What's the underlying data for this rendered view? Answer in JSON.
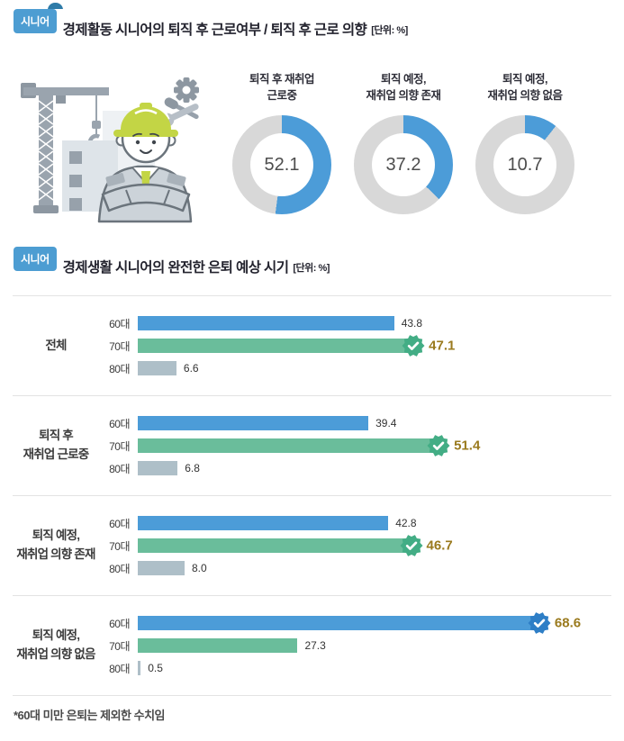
{
  "section1": {
    "badge": "시니어",
    "title": "경제활동 시니어의 퇴직 후 근로여부 / 퇴직 후 근로 의향",
    "unit": "[단위: %]"
  },
  "section2": {
    "badge": "시니어",
    "title": "경제생활 시니어의 완전한 은퇴 예상 시기",
    "unit": "[단위: %]",
    "footnote": "*60대 미만 은퇴는 제외한 수치임"
  },
  "colors": {
    "bar_blue": "#4C9CD8",
    "bar_green": "#6ABD9B",
    "bar_gray": "#AEBFC8",
    "donut_fill": "#4C9CD8",
    "donut_track": "#D8D8D8",
    "highlight_gold": "#9A7A1E",
    "seal_green": "#43AD85",
    "seal_blue": "#2E7EC6",
    "ribbon_blue": "#4D9DD2",
    "ribbon_fold": "#2E7BA8"
  },
  "chart_data": [
    {
      "type": "pie",
      "subtype": "donut",
      "title": "경제활동 시니어의 퇴직 후 근로여부 / 퇴직 후 근로 의향",
      "unit": "%",
      "colors": {
        "filled": "#4C9CD8",
        "rest": "#D8D8D8"
      },
      "slices": [
        {
          "label": "퇴직 후 재취업 근로중",
          "label_lines": [
            "퇴직 후 재취업",
            "근로중"
          ],
          "value": 52.1,
          "display": "52.1"
        },
        {
          "label": "퇴직 예정, 재취업 의향 존재",
          "label_lines": [
            "퇴직 예정,",
            "재취업 의향 존재"
          ],
          "value": 37.2,
          "display": "37.2"
        },
        {
          "label": "퇴직 예정, 재취업 의향 없음",
          "label_lines": [
            "퇴직 예정,",
            "재취업 의향 없음"
          ],
          "value": 10.7,
          "display": "10.7"
        }
      ]
    },
    {
      "type": "bar",
      "orientation": "horizontal",
      "title": "경제생활 시니어의 완전한 은퇴 예상 시기",
      "unit": "%",
      "categories": [
        "60대",
        "70대",
        "80대"
      ],
      "series_colors": [
        "#4C9CD8",
        "#6ABD9B",
        "#AEBFC8"
      ],
      "xmax": 70,
      "legend": "none",
      "grid": false,
      "groups": [
        {
          "label": "전체",
          "label_lines": [
            "전체"
          ],
          "rows": [
            {
              "age": "60대",
              "value": 43.8,
              "display": "43.8"
            },
            {
              "age": "70대",
              "value": 47.1,
              "display": "47.1",
              "highlight": true
            },
            {
              "age": "80대",
              "value": 6.6,
              "display": "6.6"
            }
          ]
        },
        {
          "label": "퇴직 후 재취업 근로중",
          "label_lines": [
            "퇴직 후",
            "재취업 근로중"
          ],
          "rows": [
            {
              "age": "60대",
              "value": 39.4,
              "display": "39.4"
            },
            {
              "age": "70대",
              "value": 51.4,
              "display": "51.4",
              "highlight": true
            },
            {
              "age": "80대",
              "value": 6.8,
              "display": "6.8"
            }
          ]
        },
        {
          "label": "퇴직 예정, 재취업 의향 존재",
          "label_lines": [
            "퇴직 예정,",
            "재취업 의향 존재"
          ],
          "rows": [
            {
              "age": "60대",
              "value": 42.8,
              "display": "42.8"
            },
            {
              "age": "70대",
              "value": 46.7,
              "display": "46.7",
              "highlight": true
            },
            {
              "age": "80대",
              "value": 8.0,
              "display": "8.0"
            }
          ]
        },
        {
          "label": "퇴직 예정, 재취업 의향 없음",
          "label_lines": [
            "퇴직 예정,",
            "재취업 의향 없음"
          ],
          "rows": [
            {
              "age": "60대",
              "value": 68.6,
              "display": "68.6",
              "highlight": true
            },
            {
              "age": "70대",
              "value": 27.3,
              "display": "27.3"
            },
            {
              "age": "80대",
              "value": 0.5,
              "display": "0.5"
            }
          ]
        }
      ],
      "footnote": "*60대 미만 은퇴는 제외한 수치임"
    }
  ]
}
